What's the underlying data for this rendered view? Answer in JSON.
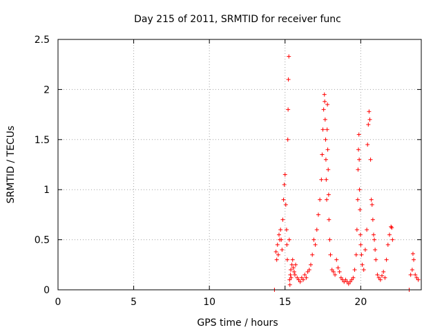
{
  "chart_data": {
    "type": "scatter",
    "title": "Day 215 of 2011, SRMTID for receiver func",
    "xlabel": "GPS time / hours",
    "ylabel": "SRMTID / TECUs",
    "xlim": [
      0,
      24
    ],
    "ylim": [
      0,
      2.5
    ],
    "x_ticks": [
      0,
      5,
      10,
      15,
      20
    ],
    "x_tick_labels": [
      "0",
      "5",
      "10",
      "15",
      "20"
    ],
    "y_ticks": [
      0,
      0.5,
      1,
      1.5,
      2,
      2.5
    ],
    "y_tick_labels": [
      "0",
      "0.5",
      "1",
      "1.5",
      "2",
      "2.5"
    ],
    "grid": true,
    "marker": "+",
    "marker_color": "#ff0000",
    "series": [
      {
        "name": "SRMTID",
        "x": [
          14.3,
          14.4,
          14.45,
          14.5,
          14.55,
          14.6,
          14.65,
          14.7,
          14.75,
          14.8,
          14.85,
          14.9,
          14.95,
          15.0,
          15.05,
          15.1,
          15.12,
          15.15,
          15.18,
          15.2,
          15.22,
          15.25,
          15.28,
          15.3,
          15.32,
          15.35,
          15.38,
          15.4,
          15.45,
          15.5,
          15.55,
          15.6,
          15.65,
          15.7,
          15.8,
          15.9,
          16.0,
          16.1,
          16.2,
          16.3,
          16.4,
          16.5,
          16.6,
          16.7,
          16.8,
          16.9,
          17.0,
          17.1,
          17.2,
          17.3,
          17.4,
          17.45,
          17.5,
          17.55,
          17.6,
          17.62,
          17.65,
          17.68,
          17.7,
          17.72,
          17.75,
          17.78,
          17.8,
          17.82,
          17.85,
          17.88,
          17.9,
          17.95,
          18.0,
          18.1,
          18.2,
          18.3,
          18.4,
          18.5,
          18.6,
          18.7,
          18.8,
          18.9,
          19.0,
          19.1,
          19.2,
          19.3,
          19.4,
          19.5,
          19.6,
          19.7,
          19.75,
          19.8,
          19.82,
          19.85,
          19.88,
          19.9,
          19.92,
          19.95,
          19.98,
          20.0,
          20.05,
          20.1,
          20.2,
          20.3,
          20.4,
          20.45,
          20.5,
          20.55,
          20.6,
          20.65,
          20.7,
          20.75,
          20.8,
          20.85,
          20.9,
          20.95,
          21.0,
          21.1,
          21.2,
          21.3,
          21.4,
          21.5,
          21.6,
          21.7,
          21.8,
          21.9,
          22.0,
          22.05,
          22.1,
          23.2,
          23.3,
          23.4,
          23.45,
          23.5,
          23.6,
          23.7,
          23.8
        ],
        "y": [
          0.0,
          0.38,
          0.3,
          0.45,
          0.35,
          0.55,
          0.5,
          0.6,
          0.5,
          0.4,
          0.7,
          0.9,
          1.05,
          1.15,
          0.85,
          0.6,
          0.45,
          0.3,
          1.5,
          1.8,
          2.1,
          2.33,
          0.5,
          0.1,
          0.05,
          0.15,
          0.2,
          0.12,
          0.25,
          0.3,
          0.22,
          0.18,
          0.15,
          0.25,
          0.12,
          0.1,
          0.08,
          0.12,
          0.1,
          0.15,
          0.12,
          0.18,
          0.2,
          0.25,
          0.35,
          0.5,
          0.45,
          0.6,
          0.75,
          0.9,
          1.1,
          1.35,
          1.6,
          1.8,
          1.95,
          1.88,
          1.7,
          1.5,
          1.3,
          1.1,
          0.9,
          1.6,
          1.85,
          1.4,
          1.2,
          0.95,
          0.7,
          0.5,
          0.35,
          0.2,
          0.18,
          0.15,
          0.3,
          0.22,
          0.18,
          0.12,
          0.1,
          0.08,
          0.1,
          0.08,
          0.06,
          0.08,
          0.1,
          0.12,
          0.2,
          0.35,
          0.6,
          0.9,
          1.2,
          1.4,
          1.55,
          1.3,
          1.0,
          0.8,
          0.55,
          0.45,
          0.35,
          0.25,
          0.2,
          0.4,
          0.6,
          1.45,
          1.65,
          1.78,
          1.7,
          1.3,
          0.9,
          0.85,
          0.7,
          0.55,
          0.5,
          0.4,
          0.3,
          0.15,
          0.12,
          0.1,
          0.14,
          0.18,
          0.12,
          0.3,
          0.45,
          0.55,
          0.63,
          0.62,
          0.5,
          0.0,
          0.15,
          0.2,
          0.36,
          0.3,
          0.15,
          0.12,
          0.1
        ]
      }
    ]
  }
}
